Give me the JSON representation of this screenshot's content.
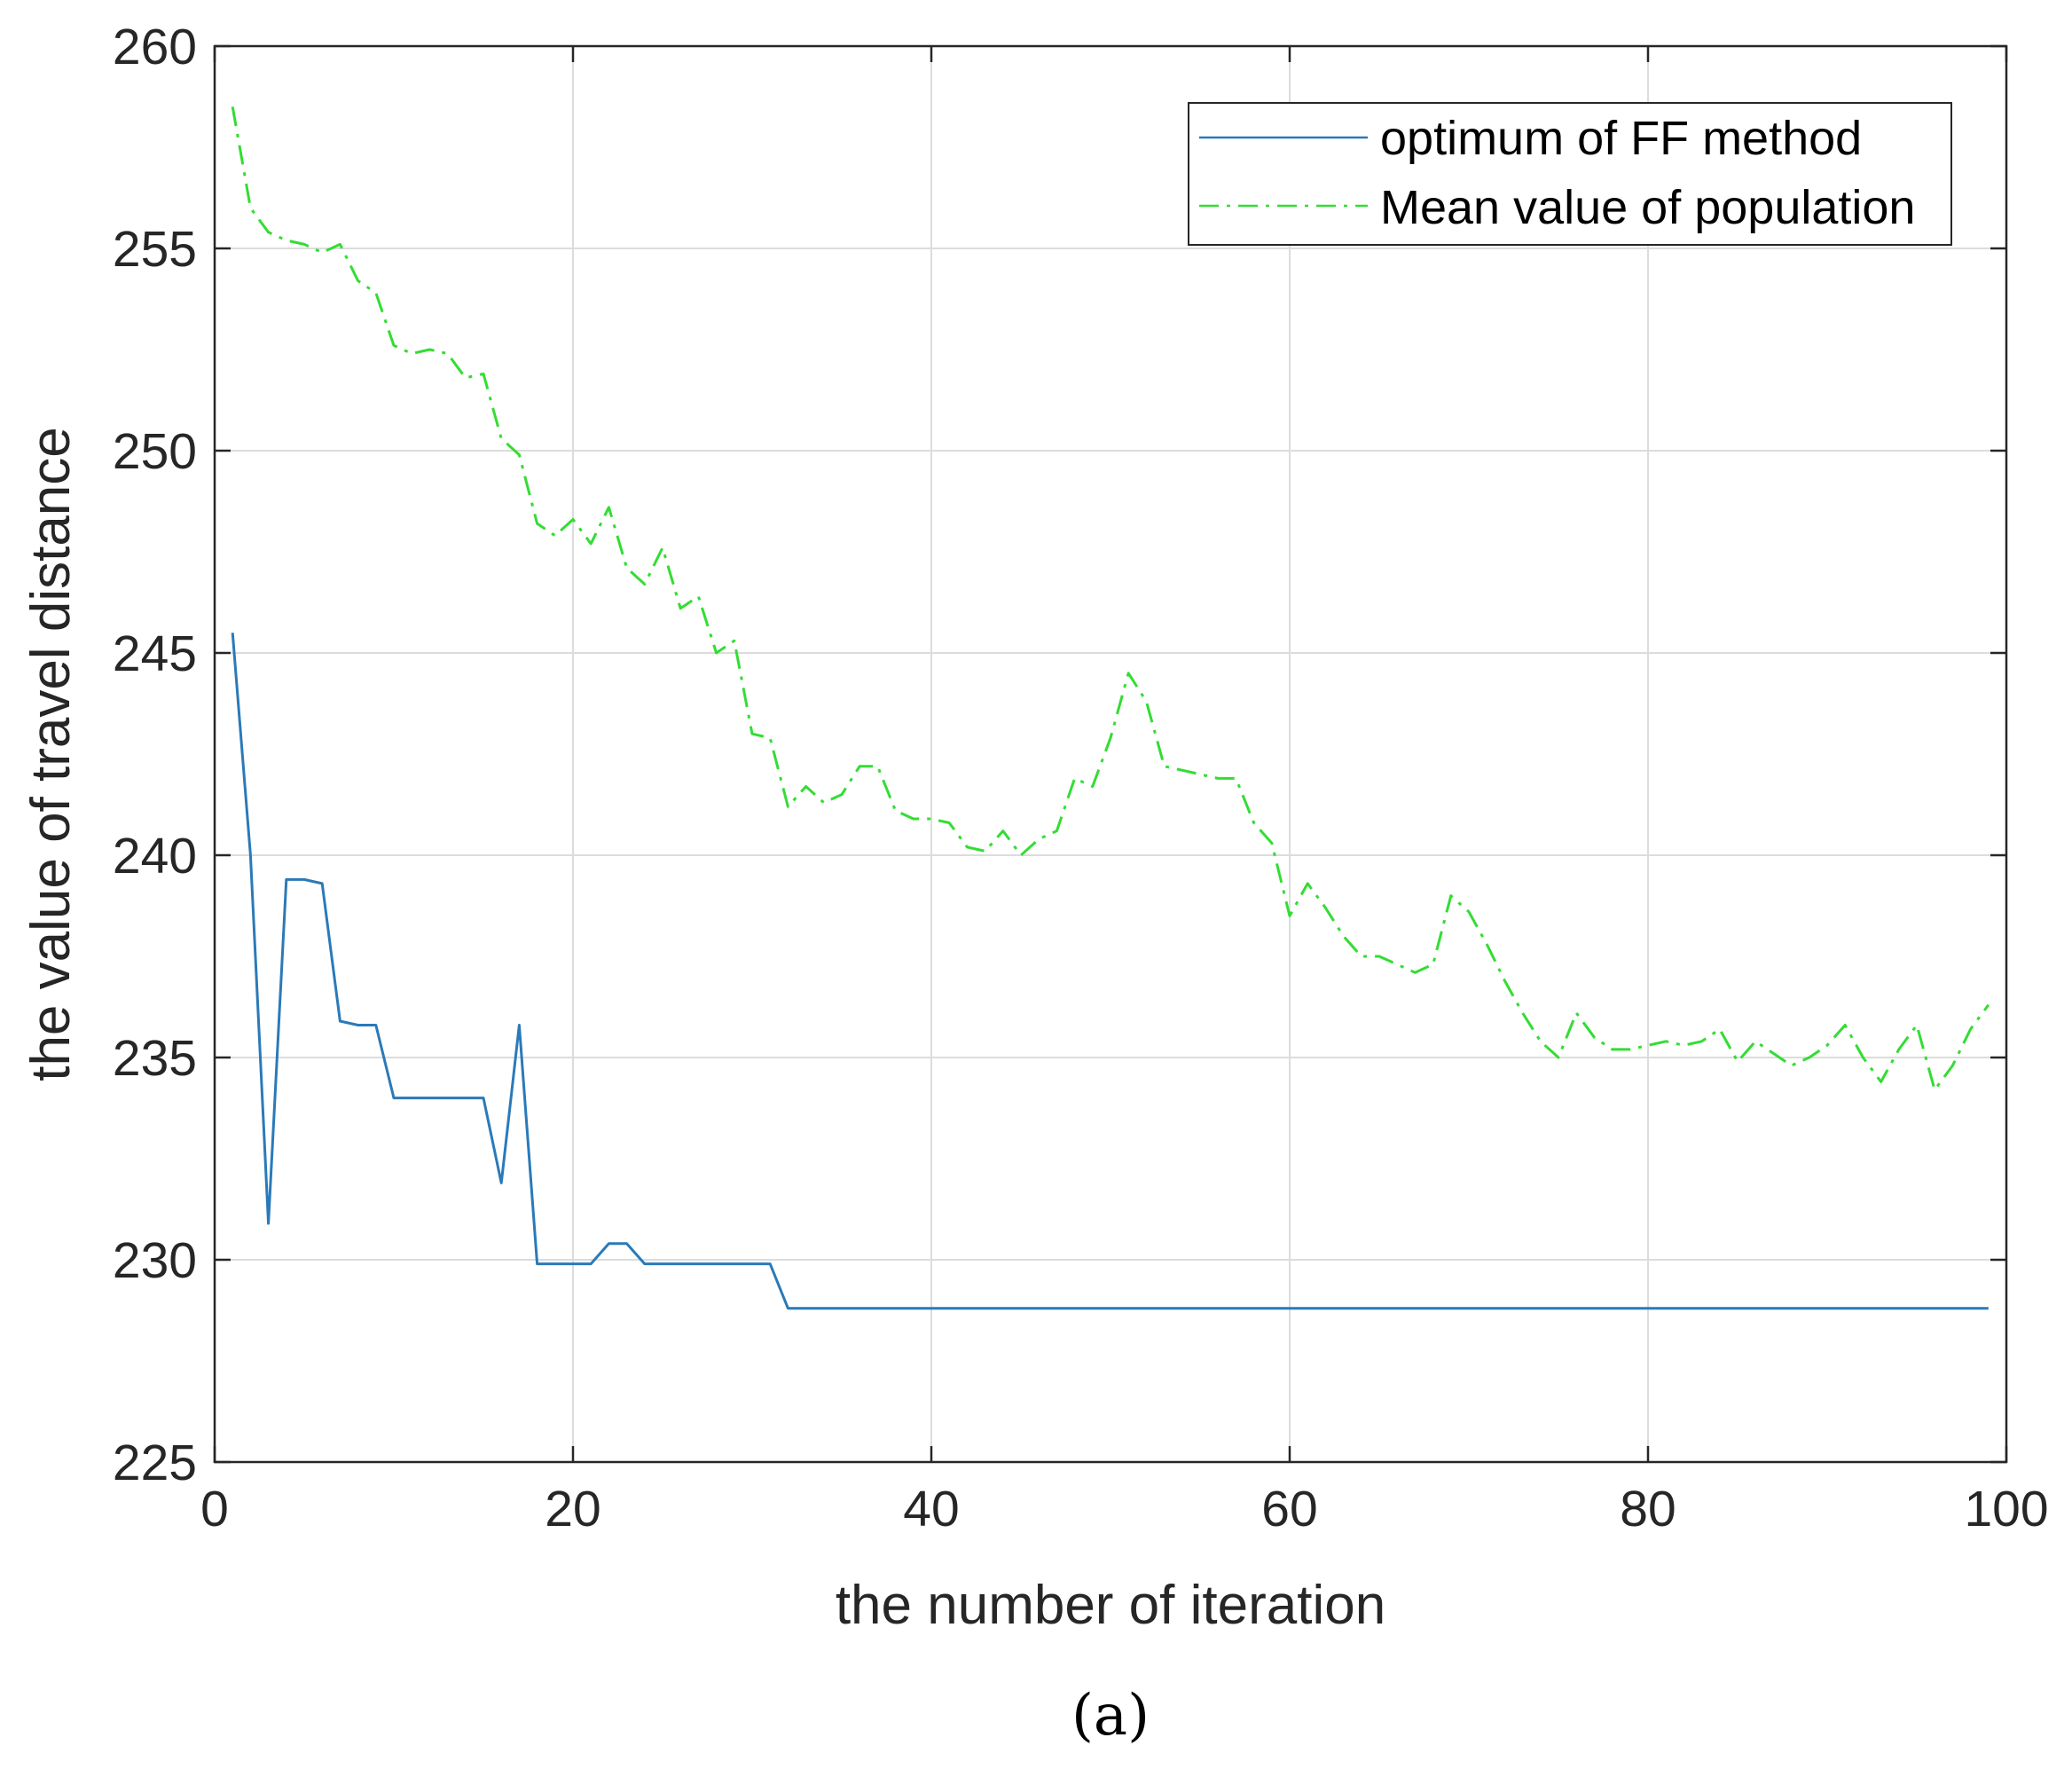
{
  "chart_data": {
    "type": "line",
    "title": "",
    "xlabel": "the number of iteration",
    "ylabel": "the value of travel distance",
    "xlim": [
      0,
      100
    ],
    "ylim": [
      225,
      260
    ],
    "xticks": [
      "0",
      "20",
      "40",
      "60",
      "80",
      "100"
    ],
    "yticks": [
      "225",
      "230",
      "235",
      "240",
      "245",
      "250",
      "255",
      "260"
    ],
    "grid": true,
    "legend_position": "top-right",
    "panel_label": "(a)",
    "colors": {
      "series_0": "#2A7AB9",
      "series_1": "#33DD33",
      "grid": "#DCDCDC",
      "axis": "#262626"
    },
    "series": [
      {
        "name": "optimum of FF method",
        "style": "solid",
        "x": [
          1,
          2,
          3,
          4,
          5,
          6,
          7,
          8,
          9,
          10,
          11,
          12,
          13,
          14,
          15,
          16,
          17,
          18,
          19,
          20,
          21,
          22,
          23,
          24,
          25,
          26,
          27,
          28,
          29,
          30,
          31,
          32,
          33,
          40,
          50,
          60,
          70,
          80,
          90,
          99
        ],
        "y": [
          245.5,
          240,
          230.9,
          239.4,
          239.4,
          239.3,
          235.9,
          235.8,
          235.8,
          234,
          234,
          234,
          234,
          234,
          234,
          231.9,
          235.8,
          229.9,
          229.9,
          229.9,
          229.9,
          230.4,
          230.4,
          229.9,
          229.9,
          229.9,
          229.9,
          229.9,
          229.9,
          229.9,
          229.9,
          228.8,
          228.8,
          228.8,
          228.8,
          228.8,
          228.8,
          228.8,
          228.8,
          228.8
        ]
      },
      {
        "name": "Mean value of population",
        "style": "dash-dot",
        "x": [
          1,
          2,
          3,
          4,
          5,
          6,
          7,
          8,
          9,
          10,
          11,
          12,
          13,
          14,
          15,
          16,
          17,
          18,
          19,
          20,
          21,
          22,
          23,
          24,
          25,
          26,
          27,
          28,
          29,
          30,
          31,
          32,
          33,
          34,
          35,
          36,
          37,
          38,
          39,
          40,
          41,
          42,
          43,
          44,
          45,
          46,
          47,
          48,
          49,
          50,
          51,
          52,
          53,
          54,
          55,
          56,
          57,
          58,
          59,
          60,
          61,
          62,
          63,
          64,
          65,
          66,
          67,
          68,
          69,
          70,
          71,
          72,
          73,
          74,
          75,
          76,
          77,
          78,
          79,
          80,
          81,
          82,
          83,
          84,
          85,
          86,
          87,
          88,
          89,
          90,
          91,
          92,
          93,
          94,
          95,
          96,
          97,
          98,
          99
        ],
        "y": [
          258.5,
          256,
          255.4,
          255.2,
          255.1,
          254.9,
          255.1,
          254.2,
          253.9,
          252.6,
          252.4,
          252.5,
          252.4,
          251.8,
          251.9,
          250.3,
          249.9,
          248.2,
          247.9,
          248.3,
          247.7,
          248.6,
          247.1,
          246.7,
          247.6,
          246.1,
          246.4,
          245,
          245.3,
          243,
          242.9,
          241.2,
          241.7,
          241.3,
          241.5,
          242.2,
          242.2,
          241.1,
          240.9,
          240.9,
          240.8,
          240.2,
          240.1,
          240.6,
          240,
          240.4,
          240.6,
          241.9,
          241.7,
          242.9,
          244.5,
          243.8,
          242.2,
          242.1,
          242,
          241.9,
          241.9,
          240.8,
          240.3,
          238.5,
          239.3,
          238.7,
          238,
          237.5,
          237.5,
          237.3,
          237.1,
          237.3,
          239,
          238.6,
          237.8,
          236.9,
          236.1,
          235.4,
          235,
          236.1,
          235.5,
          235.2,
          235.2,
          235.3,
          235.4,
          235.3,
          235.4,
          235.7,
          234.9,
          235.4,
          235.1,
          234.8,
          235,
          235.3,
          235.8,
          235,
          234.4,
          235.2,
          235.8,
          234.2,
          234.8,
          235.7,
          236.3
        ]
      }
    ]
  }
}
